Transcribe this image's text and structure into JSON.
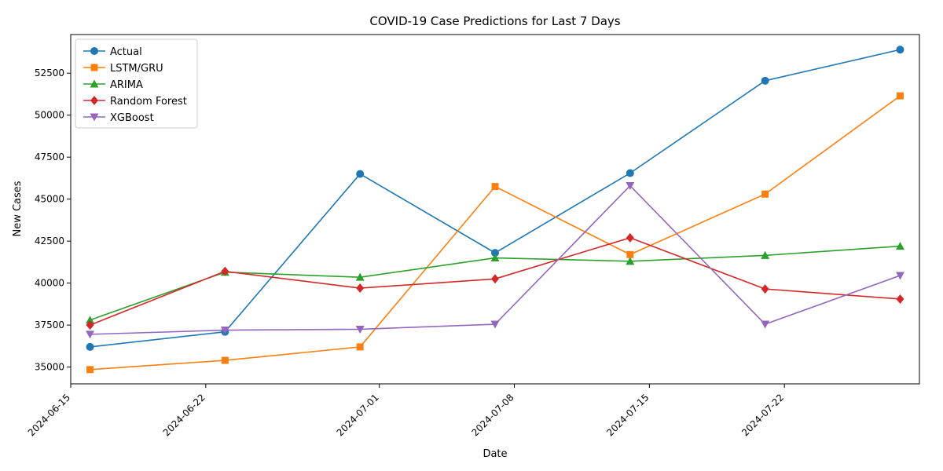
{
  "chart_data": {
    "type": "line",
    "title": "COVID-19 Case Predictions for Last 7 Days",
    "xlabel": "Date",
    "ylabel": "New Cases",
    "x": [
      "2024-06-16",
      "2024-06-23",
      "2024-06-30",
      "2024-07-07",
      "2024-07-14",
      "2024-07-21",
      "2024-07-28"
    ],
    "xlim": [
      "2024-06-15",
      "2024-07-29"
    ],
    "ylim": [
      34000,
      54800
    ],
    "x_ticks": [
      "2024-06-15",
      "2024-06-22",
      "2024-07-01",
      "2024-07-08",
      "2024-07-15",
      "2024-07-22"
    ],
    "y_ticks": [
      35000,
      37500,
      40000,
      42500,
      45000,
      47500,
      50000,
      52500
    ],
    "legend_position": "upper-left",
    "grid": false,
    "series": [
      {
        "name": "Actual",
        "color": "#1f77b4",
        "marker": "circle",
        "values": [
          36200,
          37100,
          46500,
          41800,
          46550,
          52050,
          53900
        ]
      },
      {
        "name": "LSTM/GRU",
        "color": "#ff7f0e",
        "marker": "square",
        "values": [
          34850,
          35400,
          36200,
          45750,
          41700,
          45300,
          51150
        ]
      },
      {
        "name": "ARIMA",
        "color": "#2ca02c",
        "marker": "triangle-up",
        "values": [
          37800,
          40650,
          40350,
          41500,
          41300,
          41650,
          42200
        ]
      },
      {
        "name": "Random Forest",
        "color": "#d62728",
        "marker": "diamond",
        "values": [
          37500,
          40700,
          39700,
          40250,
          42700,
          39650,
          39050
        ]
      },
      {
        "name": "XGBoost",
        "color": "#9467bd",
        "marker": "triangle-down",
        "values": [
          36950,
          37200,
          37250,
          37550,
          45800,
          37550,
          40450
        ]
      }
    ]
  }
}
